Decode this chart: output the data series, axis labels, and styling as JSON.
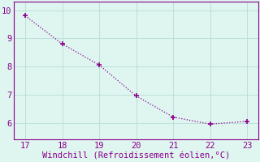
{
  "x": [
    17,
    18,
    19,
    20,
    21,
    22,
    23
  ],
  "y": [
    9.8,
    8.8,
    8.05,
    6.95,
    6.2,
    5.95,
    6.05
  ],
  "line_color": "#8B008B",
  "marker": "+",
  "marker_size": 4,
  "marker_linewidth": 1.2,
  "linewidth": 0.9,
  "linestyle": "dotted",
  "xlabel": "Windchill (Refroidissement éolien,°C)",
  "xlabel_color": "#8B008B",
  "xlabel_fontsize": 7.5,
  "background_color": "#dff5f0",
  "grid_color": "#b8ddd8",
  "tick_color": "#8B008B",
  "tick_fontsize": 7.5,
  "xlim": [
    16.7,
    23.3
  ],
  "ylim": [
    5.4,
    10.3
  ],
  "xticks": [
    17,
    18,
    19,
    20,
    21,
    22,
    23
  ],
  "yticks": [
    6,
    7,
    8,
    9,
    10
  ],
  "spine_color": "#8B008B",
  "spine_linewidth": 0.8
}
